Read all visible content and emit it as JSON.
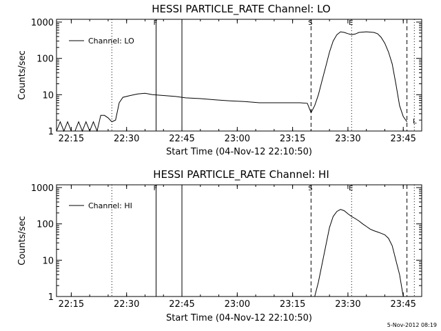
{
  "chart_data": [
    {
      "type": "line",
      "title": "HESSI PARTICLE_RATE Channel: LO",
      "xlabel": "Start Time (04-Nov-12 22:10:50)",
      "ylabel": "Counts/sec",
      "yscale": "log",
      "xlim": [
        "22:11",
        "23:50"
      ],
      "ylim": [
        1,
        1000
      ],
      "x_ticks": [
        "22:15",
        "22:30",
        "22:45",
        "23:00",
        "23:15",
        "23:30",
        "23:45"
      ],
      "y_ticks": [
        "1",
        "10",
        "100",
        "1000"
      ],
      "legend": {
        "label": "Channel: LO",
        "placement": "top-left"
      },
      "grid": false,
      "markers": [
        {
          "time": "22:38",
          "label": "F",
          "style": "solid"
        },
        {
          "time": "22:45",
          "label": "",
          "style": "solid"
        },
        {
          "time": "22:26",
          "label": "",
          "style": "dotted"
        },
        {
          "time": "23:20",
          "label": "S",
          "style": "dashed"
        },
        {
          "time": "23:31",
          "label": "E",
          "style": "dotted"
        },
        {
          "time": "23:46",
          "label": "",
          "style": "dashed"
        },
        {
          "time": "23:48",
          "label": "",
          "style": "dotted"
        }
      ],
      "end_label": {
        "time": "23:47",
        "label": "L"
      },
      "series": [
        {
          "values": [
            [
              "22:11",
              1.0
            ],
            [
              "22:12",
              1.8
            ],
            [
              "22:13",
              1.0
            ],
            [
              "22:14",
              1.8
            ],
            [
              "22:15",
              1.0
            ],
            [
              "22:16",
              1.0
            ],
            [
              "22:17",
              1.8
            ],
            [
              "22:18",
              1.0
            ],
            [
              "22:19",
              1.8
            ],
            [
              "22:20",
              1.0
            ],
            [
              "22:21",
              1.8
            ],
            [
              "22:22",
              1.0
            ],
            [
              "22:23",
              2.7
            ],
            [
              "22:24",
              2.7
            ],
            [
              "22:25",
              2.3
            ],
            [
              "22:26",
              1.8
            ],
            [
              "22:27",
              2.0
            ],
            [
              "22:28",
              6.0
            ],
            [
              "22:29",
              8.5
            ],
            [
              "22:31",
              9.5
            ],
            [
              "22:33",
              10.5
            ],
            [
              "22:35",
              11.0
            ],
            [
              "22:37",
              10.0
            ],
            [
              "22:40",
              9.5
            ],
            [
              "22:43",
              9.0
            ],
            [
              "22:46",
              8.2
            ],
            [
              "22:50",
              7.8
            ],
            [
              "22:54",
              7.2
            ],
            [
              "22:58",
              6.8
            ],
            [
              "23:02",
              6.5
            ],
            [
              "23:06",
              6.0
            ],
            [
              "23:10",
              6.0
            ],
            [
              "23:14",
              6.0
            ],
            [
              "23:17",
              6.0
            ],
            [
              "23:19",
              5.8
            ],
            [
              "23:20",
              3.2
            ],
            [
              "23:21",
              5.0
            ],
            [
              "23:22",
              10.0
            ],
            [
              "23:23",
              25.0
            ],
            [
              "23:24",
              60.0
            ],
            [
              "23:25",
              150.0
            ],
            [
              "23:26",
              300.0
            ],
            [
              "23:27",
              450.0
            ],
            [
              "23:28",
              540.0
            ],
            [
              "23:29",
              520.0
            ],
            [
              "23:30",
              480.0
            ],
            [
              "23:31",
              450.0
            ],
            [
              "23:32",
              470.0
            ],
            [
              "23:33",
              520.0
            ],
            [
              "23:35",
              540.0
            ],
            [
              "23:37",
              520.0
            ],
            [
              "23:38",
              480.0
            ],
            [
              "23:39",
              380.0
            ],
            [
              "23:40",
              260.0
            ],
            [
              "23:41",
              150.0
            ],
            [
              "23:42",
              70.0
            ],
            [
              "23:43",
              20.0
            ],
            [
              "23:44",
              5.0
            ],
            [
              "23:45",
              2.5
            ],
            [
              "23:46",
              1.8
            ]
          ]
        }
      ]
    },
    {
      "type": "line",
      "title": "HESSI PARTICLE_RATE Channel: HI",
      "xlabel": "Start Time (04-Nov-12 22:10:50)",
      "ylabel": "Counts/sec",
      "yscale": "log",
      "xlim": [
        "22:11",
        "23:50"
      ],
      "ylim": [
        1,
        1000
      ],
      "x_ticks": [
        "22:15",
        "22:30",
        "22:45",
        "23:00",
        "23:15",
        "23:30",
        "23:45"
      ],
      "y_ticks": [
        "1",
        "10",
        "100",
        "1000"
      ],
      "legend": {
        "label": "Channel: HI",
        "placement": "top-left"
      },
      "grid": false,
      "markers": [
        {
          "time": "22:38",
          "label": "F",
          "style": "solid"
        },
        {
          "time": "22:45",
          "label": "",
          "style": "solid"
        },
        {
          "time": "22:26",
          "label": "",
          "style": "dotted"
        },
        {
          "time": "23:20",
          "label": "S",
          "style": "dashed"
        },
        {
          "time": "23:31",
          "label": "E",
          "style": "dotted"
        },
        {
          "time": "23:46",
          "label": "",
          "style": "dashed"
        },
        {
          "time": "23:48",
          "label": "",
          "style": "dotted"
        }
      ],
      "series": [
        {
          "values": [
            [
              "23:21",
              1.0
            ],
            [
              "23:22",
              2.5
            ],
            [
              "23:23",
              8.0
            ],
            [
              "23:24",
              25.0
            ],
            [
              "23:25",
              80.0
            ],
            [
              "23:26",
              160.0
            ],
            [
              "23:27",
              220.0
            ],
            [
              "23:28",
              250.0
            ],
            [
              "23:29",
              230.0
            ],
            [
              "23:30",
              190.0
            ],
            [
              "23:31",
              160.0
            ],
            [
              "23:32",
              140.0
            ],
            [
              "23:33",
              120.0
            ],
            [
              "23:34",
              100.0
            ],
            [
              "23:35",
              85.0
            ],
            [
              "23:36",
              72.0
            ],
            [
              "23:37",
              65.0
            ],
            [
              "23:38",
              60.0
            ],
            [
              "23:39",
              55.0
            ],
            [
              "23:40",
              50.0
            ],
            [
              "23:41",
              40.0
            ],
            [
              "23:42",
              25.0
            ],
            [
              "23:43",
              10.0
            ],
            [
              "23:44",
              4.0
            ],
            [
              "23:45",
              1.0
            ]
          ]
        }
      ]
    }
  ],
  "timestamp": "5-Nov-2012 08:19"
}
